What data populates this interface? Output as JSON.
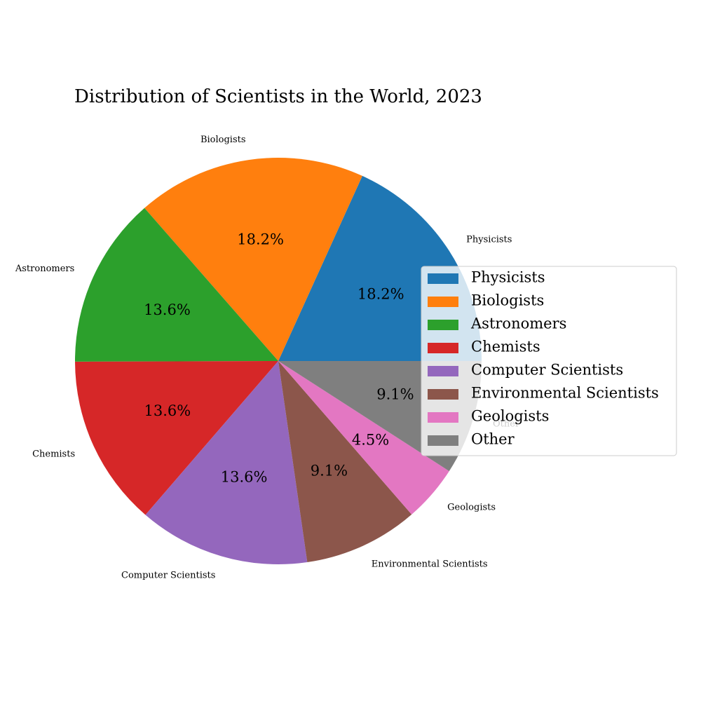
{
  "chart_data": {
    "type": "pie",
    "title": "Distribution of Scientists in the World, 2023",
    "start_angle_deg": 0,
    "direction": "counterclockwise",
    "legend_placement": "right",
    "slices": [
      {
        "label": "Physicists",
        "value": 18.2,
        "pct_label": "18.2%",
        "color": "#1f77b4"
      },
      {
        "label": "Biologists",
        "value": 18.2,
        "pct_label": "18.2%",
        "color": "#ff7f0e"
      },
      {
        "label": "Astronomers",
        "value": 13.6,
        "pct_label": "13.6%",
        "color": "#2ca02c"
      },
      {
        "label": "Chemists",
        "value": 13.6,
        "pct_label": "13.6%",
        "color": "#d62728"
      },
      {
        "label": "Computer Scientists",
        "value": 13.6,
        "pct_label": "13.6%",
        "color": "#9467bd"
      },
      {
        "label": "Environmental Scientists",
        "value": 9.1,
        "pct_label": "9.1%",
        "color": "#8c564b"
      },
      {
        "label": "Geologists",
        "value": 4.5,
        "pct_label": "4.5%",
        "color": "#e377c2"
      },
      {
        "label": "Other",
        "value": 9.1,
        "pct_label": "9.1%",
        "color": "#7f7f7f"
      }
    ]
  }
}
